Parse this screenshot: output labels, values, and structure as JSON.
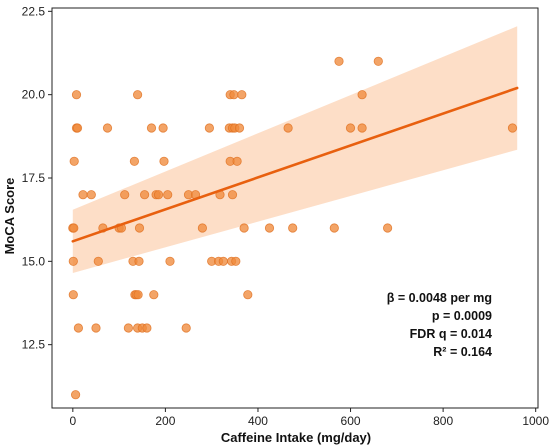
{
  "chart_data": {
    "type": "scatter",
    "xlabel": "Caffeine Intake (mg/day)",
    "ylabel": "MoCA Score",
    "xlim": [
      -45,
      1005
    ],
    "ylim": [
      10.6,
      22.6
    ],
    "x_ticks": [
      0,
      200,
      400,
      600,
      800,
      1000
    ],
    "y_ticks": [
      12.5,
      15.0,
      17.5,
      20.0,
      22.5
    ],
    "y_tick_labels": [
      "12.5",
      "15.0",
      "17.5",
      "20.0",
      "22.5"
    ],
    "grid": false,
    "points": [
      {
        "x": 0,
        "y": 16
      },
      {
        "x": 2,
        "y": 16
      },
      {
        "x": 3,
        "y": 18
      },
      {
        "x": 1,
        "y": 15
      },
      {
        "x": 1,
        "y": 14
      },
      {
        "x": 8,
        "y": 20
      },
      {
        "x": 8,
        "y": 19
      },
      {
        "x": 10,
        "y": 19
      },
      {
        "x": 6,
        "y": 11
      },
      {
        "x": 12,
        "y": 13
      },
      {
        "x": 22,
        "y": 17
      },
      {
        "x": 40,
        "y": 17
      },
      {
        "x": 50,
        "y": 13
      },
      {
        "x": 55,
        "y": 15
      },
      {
        "x": 65,
        "y": 16
      },
      {
        "x": 75,
        "y": 19
      },
      {
        "x": 100,
        "y": 16
      },
      {
        "x": 105,
        "y": 16
      },
      {
        "x": 112,
        "y": 17
      },
      {
        "x": 120,
        "y": 13
      },
      {
        "x": 130,
        "y": 15
      },
      {
        "x": 133,
        "y": 18
      },
      {
        "x": 134,
        "y": 14
      },
      {
        "x": 137,
        "y": 14
      },
      {
        "x": 140,
        "y": 20
      },
      {
        "x": 140,
        "y": 13
      },
      {
        "x": 141,
        "y": 14
      },
      {
        "x": 143,
        "y": 15
      },
      {
        "x": 144,
        "y": 16
      },
      {
        "x": 150,
        "y": 13
      },
      {
        "x": 155,
        "y": 17
      },
      {
        "x": 160,
        "y": 13
      },
      {
        "x": 170,
        "y": 19
      },
      {
        "x": 175,
        "y": 14
      },
      {
        "x": 180,
        "y": 17
      },
      {
        "x": 185,
        "y": 17
      },
      {
        "x": 195,
        "y": 19
      },
      {
        "x": 197,
        "y": 18
      },
      {
        "x": 205,
        "y": 17
      },
      {
        "x": 210,
        "y": 15
      },
      {
        "x": 245,
        "y": 13
      },
      {
        "x": 250,
        "y": 17
      },
      {
        "x": 265,
        "y": 17
      },
      {
        "x": 280,
        "y": 16
      },
      {
        "x": 295,
        "y": 19
      },
      {
        "x": 300,
        "y": 15
      },
      {
        "x": 315,
        "y": 15
      },
      {
        "x": 318,
        "y": 17
      },
      {
        "x": 325,
        "y": 15
      },
      {
        "x": 338,
        "y": 19
      },
      {
        "x": 340,
        "y": 20
      },
      {
        "x": 340,
        "y": 18
      },
      {
        "x": 343,
        "y": 15
      },
      {
        "x": 345,
        "y": 17
      },
      {
        "x": 345,
        "y": 19
      },
      {
        "x": 348,
        "y": 20
      },
      {
        "x": 350,
        "y": 19
      },
      {
        "x": 352,
        "y": 15
      },
      {
        "x": 355,
        "y": 18
      },
      {
        "x": 360,
        "y": 19
      },
      {
        "x": 365,
        "y": 20
      },
      {
        "x": 370,
        "y": 16
      },
      {
        "x": 378,
        "y": 14
      },
      {
        "x": 425,
        "y": 16
      },
      {
        "x": 465,
        "y": 19
      },
      {
        "x": 475,
        "y": 16
      },
      {
        "x": 565,
        "y": 16
      },
      {
        "x": 575,
        "y": 21
      },
      {
        "x": 600,
        "y": 19
      },
      {
        "x": 625,
        "y": 20
      },
      {
        "x": 625,
        "y": 19
      },
      {
        "x": 660,
        "y": 21
      },
      {
        "x": 680,
        "y": 16
      },
      {
        "x": 950,
        "y": 19
      }
    ],
    "regression": {
      "x": [
        0,
        960
      ],
      "y": [
        15.6,
        20.2
      ],
      "ci_upper": [
        16.55,
        22.05
      ],
      "ci_lower": [
        14.65,
        18.35
      ]
    },
    "annotations": [
      "β = 0.0048 per mg",
      "p = 0.0009",
      "FDR q = 0.014",
      "R² = 0.164"
    ],
    "colors": {
      "point_fill": "#f08a3c",
      "point_edge": "#e07020",
      "line": "#e8600f",
      "band": "#fdd8bd"
    }
  }
}
